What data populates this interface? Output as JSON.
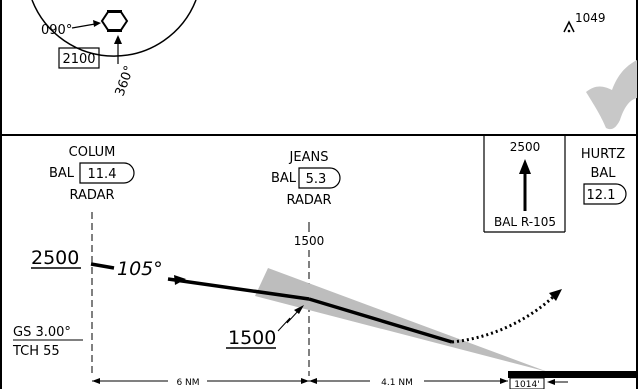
{
  "plan_view": {
    "course_left": "090°",
    "course_down": "360°",
    "msa_box": "2100",
    "obstacle_elevation": "1049"
  },
  "profile": {
    "colum": {
      "name": "COLUM",
      "dme": "BAL",
      "dme_value": "11.4",
      "radar": "RADAR"
    },
    "jeans": {
      "name": "JEANS",
      "dme": "BAL",
      "dme_value": "5.3",
      "radar": "RADAR",
      "altitude": "1500"
    },
    "missed_approach": {
      "altitude": "2500",
      "radial": "BAL R-105"
    },
    "hurtz": {
      "name": "HURTZ",
      "dme": "BAL",
      "dme_value": "12.1"
    },
    "altitude_2500": "2500",
    "course": "105°",
    "altitude_1500": "1500",
    "gs": "GS 3.00°",
    "tch": "TCH 55",
    "distance_1": "6 NM",
    "distance_2": "4.1 NM",
    "tdze": "1014'"
  }
}
